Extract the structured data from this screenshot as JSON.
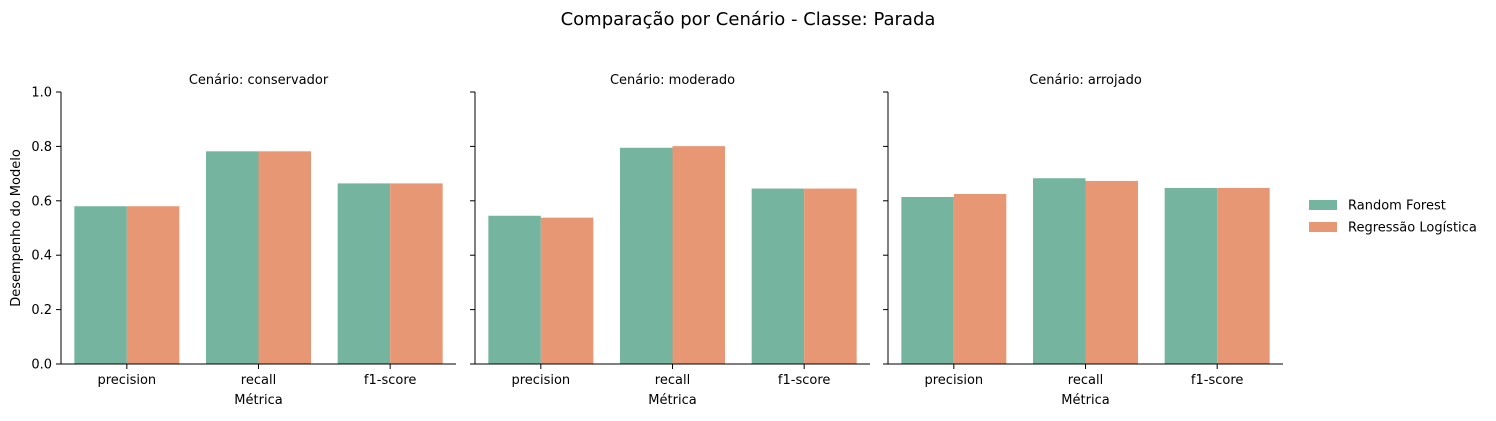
{
  "chart_data": {
    "type": "bar",
    "title": "Comparação por Cenário - Classe: Parada",
    "xlabel": "Métrica",
    "ylabel": "Desempenho do Modelo",
    "ylim": [
      0,
      1.0
    ],
    "yticks": [
      "0.0",
      "0.2",
      "0.4",
      "0.6",
      "0.8",
      "1.0"
    ],
    "categories": [
      "precision",
      "recall",
      "f1-score"
    ],
    "legend_position": "right",
    "series_colors": [
      "#75b5a0",
      "#e89774"
    ],
    "legend": [
      "Random Forest",
      "Regressão Logística"
    ],
    "panels": [
      {
        "title": "Cenário: conservador",
        "series": [
          {
            "name": "Random Forest",
            "values": [
              0.58,
              0.782,
              0.664
            ]
          },
          {
            "name": "Regressão Logística",
            "values": [
              0.58,
              0.782,
              0.664
            ]
          }
        ]
      },
      {
        "title": "Cenário: moderado",
        "series": [
          {
            "name": "Random Forest",
            "values": [
              0.545,
              0.795,
              0.645
            ]
          },
          {
            "name": "Regressão Logística",
            "values": [
              0.538,
              0.801,
              0.645
            ]
          }
        ]
      },
      {
        "title": "Cenário: arrojado",
        "series": [
          {
            "name": "Random Forest",
            "values": [
              0.614,
              0.683,
              0.647
            ]
          },
          {
            "name": "Regressão Logística",
            "values": [
              0.625,
              0.673,
              0.647
            ]
          }
        ]
      }
    ]
  }
}
